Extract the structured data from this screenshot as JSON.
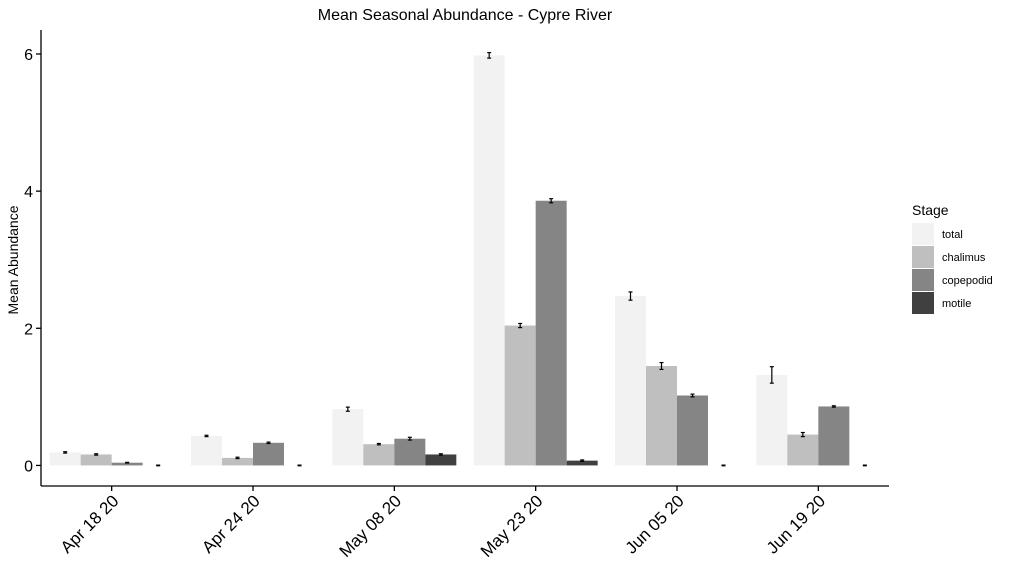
{
  "chart_data": {
    "type": "bar",
    "title": "Mean Seasonal Abundance - Cypre River",
    "xlabel": "",
    "ylabel": "Mean Abundance",
    "categories": [
      "Apr 18 20",
      "Apr 24 20",
      "May 08 20",
      "May 23 20",
      "Jun 05 20",
      "Jun 19 20"
    ],
    "yticks": [
      0,
      2,
      4,
      6
    ],
    "ylim": [
      -0.3,
      6.35
    ],
    "grid": false,
    "legend": {
      "title": "Stage",
      "placement": "right"
    },
    "series": [
      {
        "name": "total",
        "color": "#f2f2f2",
        "values": [
          0.19,
          0.43,
          0.82,
          5.98,
          2.47,
          1.32
        ],
        "errors": [
          0.01,
          0.01,
          0.03,
          0.04,
          0.06,
          0.12
        ]
      },
      {
        "name": "chalimus",
        "color": "#bfbfbf",
        "values": [
          0.16,
          0.11,
          0.31,
          2.04,
          1.45,
          0.45
        ],
        "errors": [
          0.01,
          0.01,
          0.01,
          0.03,
          0.05,
          0.03
        ]
      },
      {
        "name": "copepodid",
        "color": "#858585",
        "values": [
          0.04,
          0.33,
          0.39,
          3.86,
          1.02,
          0.86
        ],
        "errors": [
          0.005,
          0.01,
          0.02,
          0.03,
          0.02,
          0.01
        ]
      },
      {
        "name": "motile",
        "color": "#404040",
        "values": [
          0.0,
          0.0,
          0.16,
          0.07,
          0.0,
          0.0
        ],
        "errors": [
          0.005,
          0.005,
          0.01,
          0.01,
          0.005,
          0.005
        ]
      }
    ]
  }
}
